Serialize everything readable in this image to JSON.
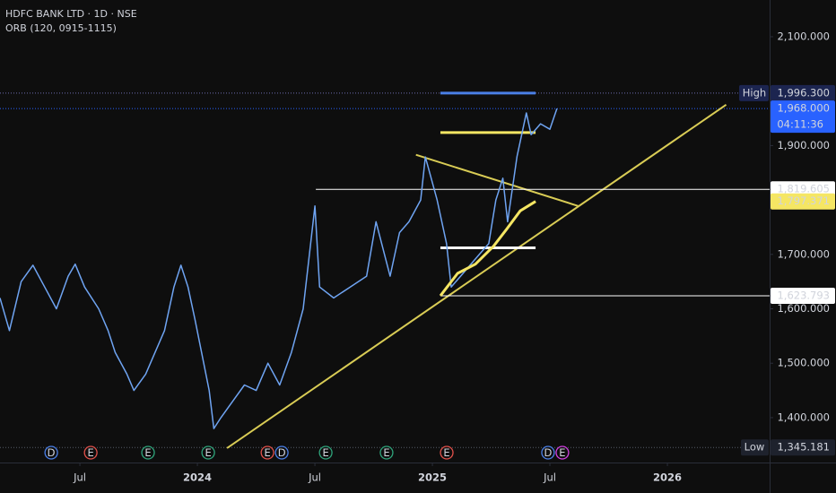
{
  "chart_data": {
    "type": "line",
    "title": "HDFC BANK LTD · 1D · NSE",
    "subtitle": "ORB (120, 0915-1115)",
    "xlim": [
      2023.16,
      2026.435
    ],
    "ylim": [
      1317.5,
      2167.5
    ],
    "xticks": [
      {
        "value": 2023.5,
        "label": "Jul"
      },
      {
        "value": 2024,
        "label": "2024"
      },
      {
        "value": 2024.5,
        "label": "Jul"
      },
      {
        "value": 2025,
        "label": "2025"
      },
      {
        "value": 2025.5,
        "label": "Jul"
      },
      {
        "value": 2026,
        "label": "2026"
      }
    ],
    "yticks": [
      {
        "value": 2100,
        "label": "2,100.000"
      },
      {
        "value": 1900,
        "label": "1,900.000"
      },
      {
        "value": 1700,
        "label": "1,700.000"
      },
      {
        "value": 1600,
        "label": "1,600.000"
      },
      {
        "value": 1500,
        "label": "1,500.000"
      },
      {
        "value": 1400,
        "label": "1,400.000"
      }
    ],
    "series": [
      {
        "color": "#6fa4f2",
        "x": [
          2023.16,
          2023.2,
          2023.25,
          2023.3,
          2023.35,
          2023.4,
          2023.45,
          2023.48,
          2023.52,
          2023.58,
          2023.62,
          2023.65,
          2023.7,
          2023.73,
          2023.78,
          2023.82,
          2023.86,
          2023.9,
          2023.93,
          2023.96,
          2023.99,
          2024.05,
          2024.07,
          2024.1,
          2024.15,
          2024.2,
          2024.25,
          2024.3,
          2024.35,
          2024.4,
          2024.45,
          2024.5,
          2024.52,
          2024.58,
          2024.65,
          2024.72,
          2024.76,
          2024.82,
          2024.86,
          2024.9,
          2024.95,
          2024.97,
          2025.02,
          2025.06,
          2025.08,
          2025.12,
          2025.16,
          2025.2,
          2025.24,
          2025.27,
          2025.3,
          2025.32,
          2025.36,
          2025.4,
          2025.42,
          2025.46,
          2025.5,
          2025.53
        ],
        "values": [
          1620,
          1560,
          1650,
          1680,
          1640,
          1600,
          1660,
          1682,
          1640,
          1600,
          1560,
          1520,
          1480,
          1450,
          1480,
          1520,
          1560,
          1640,
          1680,
          1640,
          1580,
          1450,
          1380,
          1400,
          1430,
          1460,
          1450,
          1500,
          1460,
          1520,
          1600,
          1789,
          1640,
          1620,
          1640,
          1660,
          1760,
          1660,
          1740,
          1760,
          1800,
          1879,
          1800,
          1720,
          1640,
          1660,
          1680,
          1700,
          1720,
          1800,
          1840,
          1760,
          1880,
          1960,
          1920,
          1940,
          1930,
          1968
        ]
      },
      {
        "color": "#f5e663",
        "x": [
          2025.034,
          2025.107,
          2025.183,
          2025.26,
          2025.317,
          2025.374,
          2025.439
        ],
        "values": [
          1624,
          1665,
          1682,
          1715,
          1747,
          1780,
          1797.371
        ]
      }
    ],
    "levels": [
      {
        "value": 1996.3,
        "color": "#4a7fe6",
        "x": [
          2025.034,
          2025.439
        ]
      },
      {
        "value": 1924,
        "color": "#f5e663",
        "x": [
          2025.034,
          2025.439
        ]
      },
      {
        "value": 1712,
        "color": "#ffffff",
        "x": [
          2025.034,
          2025.439
        ]
      },
      {
        "value": 1819.605,
        "color": "#ffffff",
        "x": [
          2024.504,
          2026.435
        ]
      },
      {
        "value": 1623.793,
        "color": "#ffffff",
        "x": [
          2025.034,
          2026.435
        ]
      }
    ],
    "trendlines": [
      {
        "color": "#d9cc55",
        "x": [
          2024.126,
          2026.25
        ],
        "values": [
          1344,
          1975
        ]
      },
      {
        "color": "#d9cc55",
        "x": [
          2024.93,
          2025.62
        ],
        "values": [
          1883,
          1789
        ]
      }
    ],
    "markers": [
      {
        "label": "D",
        "x": 2023.378,
        "color": "#4a7fe6"
      },
      {
        "label": "E",
        "x": 2023.546,
        "color": "#e0504a"
      },
      {
        "label": "E",
        "x": 2023.79,
        "color": "#2fa37a"
      },
      {
        "label": "E",
        "x": 2024.046,
        "color": "#2fa37a"
      },
      {
        "label": "E",
        "x": 2024.298,
        "color": "#e0504a"
      },
      {
        "label": "D",
        "x": 2024.359,
        "color": "#4a7fe6"
      },
      {
        "label": "E",
        "x": 2024.546,
        "color": "#2fa37a"
      },
      {
        "label": "E",
        "x": 2024.805,
        "color": "#2fa37a"
      },
      {
        "label": "E",
        "x": 2025.061,
        "color": "#e0504a"
      },
      {
        "label": "D",
        "x": 2025.492,
        "color": "#4a7fe6"
      },
      {
        "label": "E",
        "x": 2025.553,
        "color": "#d040e0"
      }
    ],
    "price_labels": {
      "high": {
        "name": "High",
        "value": 1996.3,
        "label": "1,996.300"
      },
      "last": {
        "value": 1968,
        "label": "1,968.000",
        "countdown": "04:11:36"
      },
      "level_a": {
        "value": 1819.605,
        "label": "1,819.605"
      },
      "ma": {
        "value": 1797.371,
        "label": "1,797.371"
      },
      "level_b": {
        "value": 1623.793,
        "label": "1,623.793"
      },
      "low": {
        "name": "Low",
        "value": 1345.181,
        "label": "1,345.181"
      }
    }
  }
}
